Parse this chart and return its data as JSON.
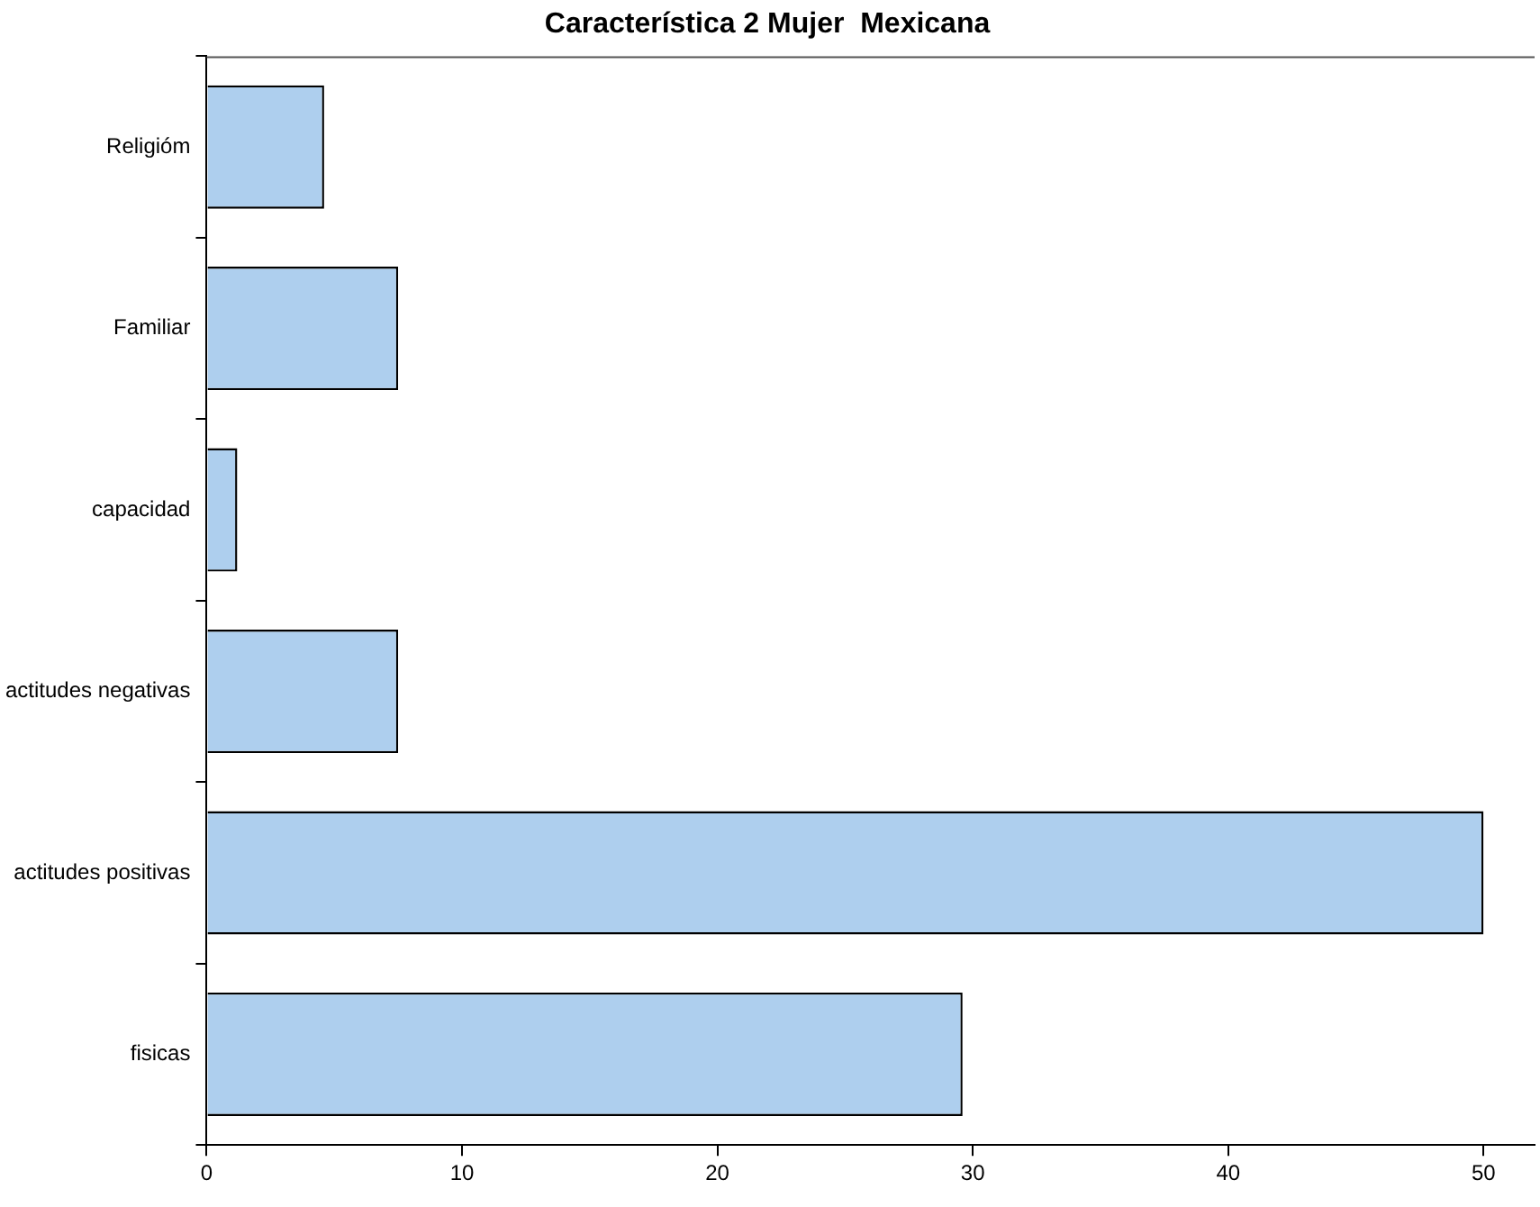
{
  "chart_data": {
    "type": "bar",
    "orientation": "horizontal",
    "title": "Característica 2 Mujer  Mexicana",
    "categories": [
      "Religióm",
      "Familiar",
      "capacidad",
      "actitudes negativas",
      "actitudes positivas",
      "fisicas"
    ],
    "values": [
      4.6,
      7.5,
      1.2,
      7.5,
      50,
      29.6
    ],
    "color": "#aecfee",
    "xlim": [
      0,
      52
    ],
    "xticks": [
      0,
      10,
      20,
      30,
      40,
      50
    ],
    "grid": false
  }
}
